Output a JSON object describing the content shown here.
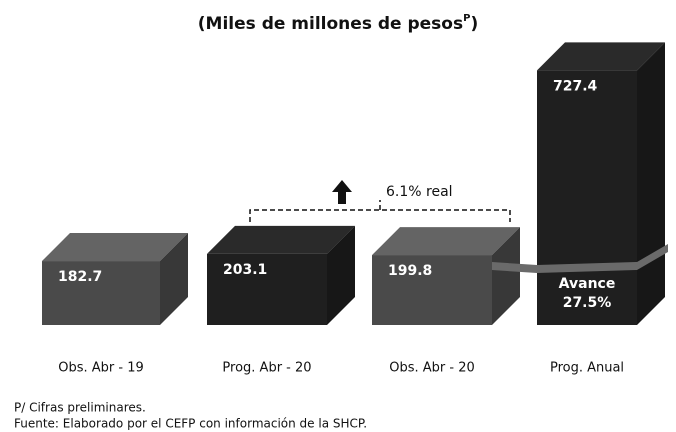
{
  "chart_data": {
    "type": "bar3d",
    "title": "(Miles de millones de pesos",
    "title_superscript": "P",
    "title_end": ")",
    "categories": [
      "Obs. Abr - 19",
      "Prog. Abr - 20",
      "Obs. Abr - 20",
      "Prog. Anual"
    ],
    "values": [
      182.7,
      203.1,
      199.8,
      727.4
    ],
    "colors": [
      "#4a4a4a",
      "#1f1f1f",
      "#4a4a4a",
      "#1f1f1f"
    ],
    "annotations": [
      "6.1% real",
      "Avance",
      "27.5%"
    ],
    "notes": [
      "P/ Cifras preliminares.",
      "Fuente: Elaborado por el CEFP con información de la SHCP."
    ]
  }
}
